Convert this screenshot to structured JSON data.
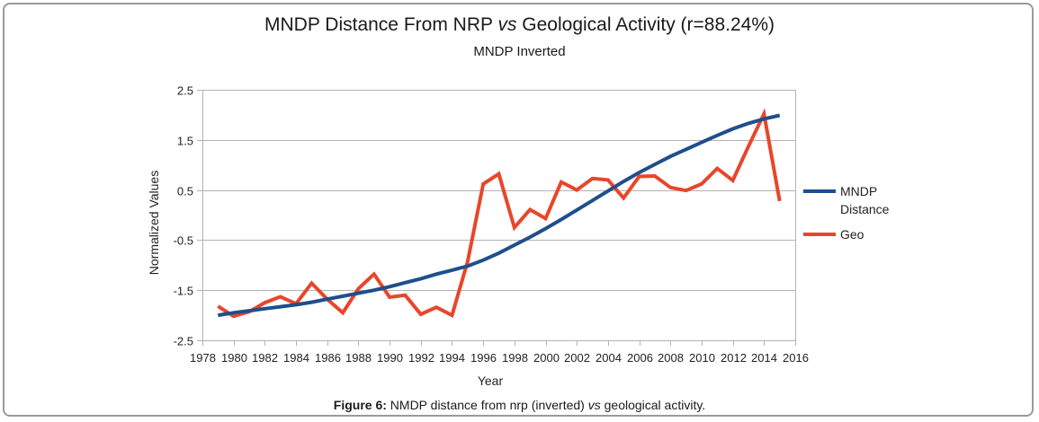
{
  "figure": {
    "caption_label": "Figure 6:",
    "caption_text_1": " NMDP distance from nrp (inverted) ",
    "caption_italic": "vs",
    "caption_text_2": " geological activity."
  },
  "chart_data": {
    "type": "line",
    "title_part1": "MNDP Distance From NRP ",
    "title_italic": "vs",
    "title_part2": " Geological Activity (r=88.24%)",
    "subtitle": "MNDP Inverted",
    "xlabel": "Year",
    "ylabel": "Normalized Values",
    "xlim": [
      1978,
      2016
    ],
    "ylim": [
      -2.5,
      2.5
    ],
    "x_ticks": [
      1978,
      1980,
      1982,
      1984,
      1986,
      1988,
      1990,
      1992,
      1994,
      1996,
      1998,
      2000,
      2002,
      2004,
      2006,
      2008,
      2010,
      2012,
      2014,
      2016
    ],
    "y_ticks": [
      2.5,
      1.5,
      0.5,
      -0.5,
      -1.5,
      -2.5
    ],
    "grid": "horizontal",
    "legend_position": "right",
    "x": [
      1979,
      1980,
      1981,
      1982,
      1983,
      1984,
      1985,
      1986,
      1987,
      1988,
      1989,
      1990,
      1991,
      1992,
      1993,
      1994,
      1995,
      1996,
      1997,
      1998,
      1999,
      2000,
      2001,
      2002,
      2003,
      2004,
      2005,
      2006,
      2007,
      2008,
      2009,
      2010,
      2011,
      2012,
      2013,
      2014,
      2015
    ],
    "series": [
      {
        "name": "MNDP Distance",
        "legend_lines": [
          "MNDP",
          "Distance"
        ],
        "color": "#1f4e8c",
        "values": [
          -2.0,
          -1.95,
          -1.91,
          -1.87,
          -1.83,
          -1.79,
          -1.74,
          -1.68,
          -1.62,
          -1.56,
          -1.5,
          -1.43,
          -1.35,
          -1.27,
          -1.18,
          -1.1,
          -1.02,
          -0.9,
          -0.76,
          -0.6,
          -0.44,
          -0.27,
          -0.09,
          0.1,
          0.29,
          0.48,
          0.67,
          0.85,
          1.01,
          1.17,
          1.31,
          1.45,
          1.59,
          1.72,
          1.83,
          1.92,
          1.99
        ]
      },
      {
        "name": "Geo",
        "legend_lines": [
          "Geo"
        ],
        "color": "#e8462a",
        "values": [
          -1.82,
          -2.02,
          -1.93,
          -1.75,
          -1.63,
          -1.77,
          -1.36,
          -1.68,
          -1.95,
          -1.47,
          -1.18,
          -1.64,
          -1.6,
          -1.98,
          -1.84,
          -2.0,
          -0.93,
          0.62,
          0.82,
          -0.25,
          0.11,
          -0.07,
          0.66,
          0.5,
          0.73,
          0.7,
          0.34,
          0.77,
          0.78,
          0.55,
          0.49,
          0.62,
          0.93,
          0.69,
          1.37,
          2.02,
          0.28
        ]
      }
    ]
  }
}
